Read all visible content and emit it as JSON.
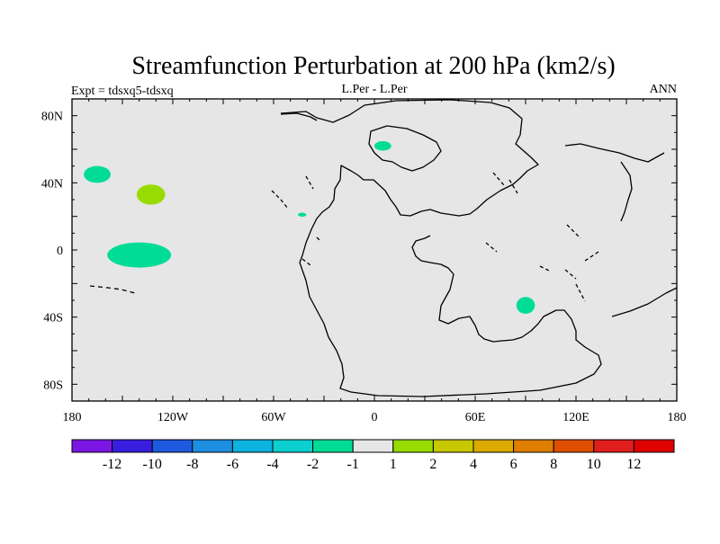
{
  "chart_data": {
    "type": "heatmap",
    "title": "Streamfunction Perturbation at 200 hPa (km2/s)",
    "subtitle_left": "Expt = tdsxq5-tdsxq",
    "subtitle_center": "L.Per - L.Per",
    "subtitle_right": "ANN",
    "x_range": [
      -180,
      180
    ],
    "y_range": [
      -90,
      90
    ],
    "x_ticks": [
      {
        "value": -180,
        "label": "180"
      },
      {
        "value": -120,
        "label": "120W"
      },
      {
        "value": -60,
        "label": "60W"
      },
      {
        "value": 0,
        "label": "0"
      },
      {
        "value": 60,
        "label": "60E"
      },
      {
        "value": 120,
        "label": "120E"
      },
      {
        "value": 180,
        "label": "180"
      }
    ],
    "y_ticks": [
      {
        "value": 80,
        "label": "80N"
      },
      {
        "value": 40,
        "label": "40N"
      },
      {
        "value": 0,
        "label": "0"
      },
      {
        "value": -40,
        "label": "40S"
      },
      {
        "value": -80,
        "label": "80S"
      }
    ],
    "background_color": "#e6e6e6",
    "colorbar": {
      "labels": [
        "-12",
        "-10",
        "-8",
        "-6",
        "-4",
        "-2",
        "-1",
        "1",
        "2",
        "4",
        "6",
        "8",
        "10",
        "12"
      ],
      "colors": [
        "#7b16e4",
        "#3a1ee0",
        "#1e5ae0",
        "#1e8ee0",
        "#0cb2e0",
        "#0cd0d0",
        "#00dc96",
        "#e6e6e6",
        "#96dc00",
        "#c8c800",
        "#dcaa00",
        "#e07e00",
        "#e04e00",
        "#e01e1e",
        "#e00000"
      ]
    },
    "anomalies": [
      {
        "lon": -165,
        "lat": 45,
        "rx_deg": 8,
        "ry_deg": 5,
        "color": "#00dc96"
      },
      {
        "lon": -133,
        "lat": 33,
        "rx_deg": 8.5,
        "ry_deg": 6,
        "color": "#96dc00"
      },
      {
        "lon": -140,
        "lat": -3,
        "rx_deg": 19,
        "ry_deg": 7.5,
        "color": "#00dc96"
      },
      {
        "lon": 5,
        "lat": 62,
        "rx_deg": 5,
        "ry_deg": 2.8,
        "color": "#00dc96"
      },
      {
        "lon": -43,
        "lat": 21,
        "rx_deg": 2.5,
        "ry_deg": 1.2,
        "color": "#00dc96"
      },
      {
        "lon": 90,
        "lat": -33,
        "rx_deg": 5.5,
        "ry_deg": 5,
        "color": "#00dc96"
      }
    ]
  }
}
